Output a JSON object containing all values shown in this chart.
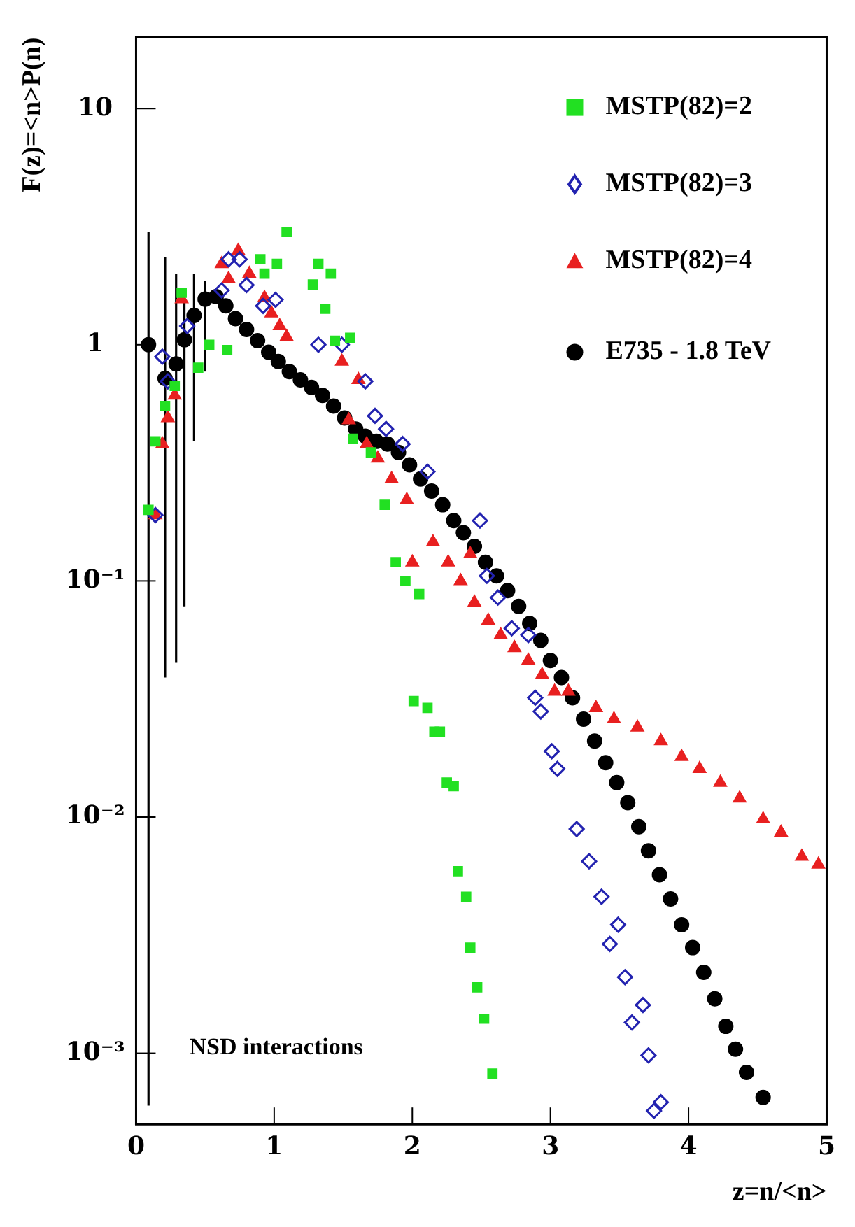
{
  "chart_data": {
    "type": "scatter",
    "xlabel": "z=n/<n>",
    "ylabel": "F(z)=<n>P(n)",
    "log": "y",
    "grid": false,
    "legend": "top right",
    "xlim": [
      0,
      5
    ],
    "xticks": [
      0,
      1,
      2,
      3,
      4,
      5
    ],
    "ylim": [
      0.0005,
      20
    ],
    "yticks": [
      {
        "value": 0.001,
        "label": "10⁻³"
      },
      {
        "value": 0.01,
        "label": "10⁻²"
      },
      {
        "value": 0.1,
        "label": "10⁻¹"
      },
      1,
      10
    ],
    "annotations": [
      "NSD interactions"
    ],
    "series": [
      {
        "name": "MSTP(82)=2",
        "color": "#22e022",
        "marker": "square",
        "x": [
          0.09,
          0.14,
          0.21,
          0.28,
          0.33,
          0.45,
          0.53,
          0.66,
          0.9,
          0.93,
          1.02,
          1.09,
          1.28,
          1.32,
          1.41,
          1.37,
          1.44,
          1.55,
          1.57,
          1.7,
          1.8,
          1.88,
          1.95,
          2.05,
          2.01,
          2.11,
          2.16,
          2.2,
          2.25,
          2.3,
          2.33,
          2.39,
          2.42,
          2.47,
          2.52,
          2.58
        ],
        "values": [
          0.2,
          0.39,
          0.55,
          0.67,
          1.66,
          0.8,
          1.0,
          0.95,
          2.3,
          2.0,
          2.2,
          3.0,
          1.8,
          2.2,
          2.0,
          1.42,
          1.04,
          1.07,
          0.4,
          0.35,
          0.21,
          0.12,
          0.1,
          0.088,
          0.031,
          0.029,
          0.023,
          0.023,
          0.014,
          0.0135,
          0.0059,
          0.0046,
          0.0028,
          0.0019,
          0.0014,
          0.00082
        ]
      },
      {
        "name": "MSTP(82)=3",
        "color": "#2323b0",
        "marker": "diamond",
        "x": [
          0.14,
          0.19,
          0.23,
          0.37,
          0.62,
          0.67,
          0.75,
          0.8,
          0.92,
          1.01,
          1.32,
          1.49,
          1.66,
          1.73,
          1.81,
          1.93,
          2.11,
          2.49,
          2.54,
          2.62,
          2.72,
          2.84,
          2.89,
          2.93,
          3.01,
          3.05,
          3.19,
          3.28,
          3.37,
          3.49,
          3.43,
          3.54,
          3.67,
          3.59,
          3.71,
          3.8,
          3.75
        ],
        "values": [
          0.19,
          0.89,
          0.7,
          1.2,
          1.7,
          2.3,
          2.3,
          1.79,
          1.46,
          1.55,
          1.0,
          1.0,
          0.7,
          0.5,
          0.44,
          0.38,
          0.29,
          0.18,
          0.105,
          0.085,
          0.063,
          0.059,
          0.032,
          0.028,
          0.019,
          0.016,
          0.0089,
          0.0065,
          0.0046,
          0.0035,
          0.0029,
          0.0021,
          0.0016,
          0.00135,
          0.00098,
          0.00062,
          0.00057
        ]
      },
      {
        "name": "MSTP(82)=4",
        "color": "#e82020",
        "marker": "triangle",
        "x": [
          0.14,
          0.19,
          0.23,
          0.28,
          0.33,
          0.62,
          0.67,
          0.74,
          0.82,
          0.93,
          0.98,
          1.04,
          1.09,
          1.49,
          1.61,
          1.54,
          1.67,
          1.75,
          1.85,
          1.96,
          2.0,
          2.15,
          2.26,
          2.35,
          2.42,
          2.45,
          2.55,
          2.64,
          2.74,
          2.84,
          2.94,
          3.03,
          3.13,
          3.33,
          3.46,
          3.63,
          3.8,
          3.95,
          4.08,
          4.23,
          4.37,
          4.54,
          4.67,
          4.82,
          4.94
        ],
        "values": [
          0.19,
          0.38,
          0.49,
          0.61,
          1.56,
          2.2,
          1.9,
          2.5,
          2.0,
          1.58,
          1.36,
          1.2,
          1.08,
          0.85,
          0.71,
          0.48,
          0.38,
          0.33,
          0.27,
          0.22,
          0.12,
          0.146,
          0.12,
          0.1,
          0.13,
          0.081,
          0.068,
          0.059,
          0.052,
          0.046,
          0.04,
          0.034,
          0.034,
          0.029,
          0.026,
          0.024,
          0.021,
          0.018,
          0.016,
          0.014,
          0.012,
          0.0098,
          0.0086,
          0.0068,
          0.0063
        ]
      },
      {
        "name": "E735 - 1.8 TeV",
        "color": "#000000",
        "marker": "circle",
        "x": [
          0.09,
          0.21,
          0.29,
          0.35,
          0.42,
          0.5,
          0.58,
          0.65,
          0.72,
          0.8,
          0.88,
          0.96,
          1.03,
          1.11,
          1.19,
          1.27,
          1.35,
          1.43,
          1.51,
          1.59,
          1.66,
          1.74,
          1.82,
          1.9,
          1.98,
          2.06,
          2.14,
          2.22,
          2.3,
          2.37,
          2.45,
          2.53,
          2.61,
          2.69,
          2.77,
          2.85,
          2.93,
          3.0,
          3.08,
          3.16,
          3.24,
          3.32,
          3.4,
          3.48,
          3.56,
          3.64,
          3.71,
          3.79,
          3.87,
          3.95,
          4.03,
          4.11,
          4.19,
          4.27,
          4.34,
          4.42,
          4.54
        ],
        "values": [
          1.0,
          0.72,
          0.83,
          1.05,
          1.33,
          1.56,
          1.6,
          1.46,
          1.29,
          1.16,
          1.04,
          0.93,
          0.85,
          0.77,
          0.71,
          0.66,
          0.61,
          0.55,
          0.49,
          0.44,
          0.41,
          0.39,
          0.38,
          0.35,
          0.31,
          0.27,
          0.24,
          0.21,
          0.18,
          0.16,
          0.14,
          0.12,
          0.105,
          0.091,
          0.078,
          0.066,
          0.056,
          0.046,
          0.039,
          0.032,
          0.026,
          0.021,
          0.017,
          0.014,
          0.0115,
          0.0091,
          0.0072,
          0.0057,
          0.0045,
          0.0035,
          0.0028,
          0.0022,
          0.0017,
          0.0013,
          0.00104,
          0.00083,
          0.00065
        ],
        "errors": [
          [
            0.0006,
            3.0
          ],
          [
            0.039,
            2.35
          ],
          [
            0.045,
            2.0
          ],
          [
            0.078,
            1.74
          ],
          [
            0.39,
            2.0
          ],
          [
            0.77,
            1.86
          ],
          null,
          null,
          null,
          null,
          null,
          null,
          null,
          null,
          null,
          null,
          null,
          null,
          null,
          null,
          null,
          null,
          null,
          null,
          null,
          null,
          null,
          null,
          null,
          null,
          null,
          null,
          null,
          null,
          null,
          null,
          null,
          null,
          null,
          null,
          null,
          null,
          null,
          null,
          null,
          null,
          null,
          null,
          null,
          null,
          null,
          null,
          null,
          null,
          null,
          null,
          null
        ]
      }
    ]
  }
}
